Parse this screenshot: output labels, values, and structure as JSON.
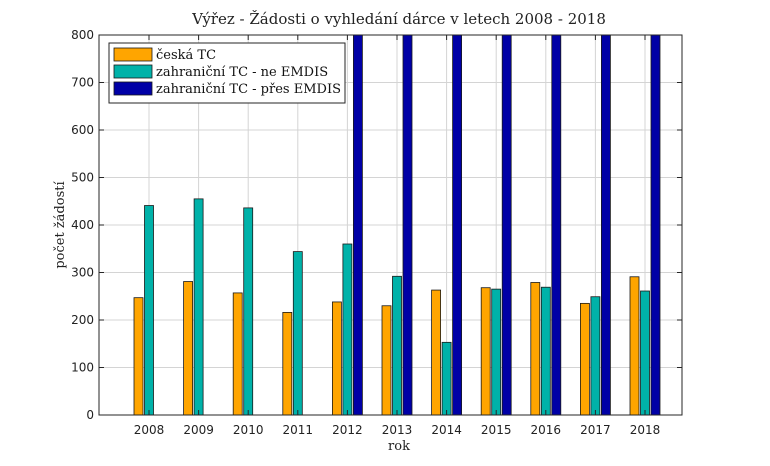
{
  "chart_data": {
    "type": "bar",
    "title": "Výřez - Žádosti o vyhledání dárce v letech 2008 - 2018",
    "xlabel": "rok",
    "ylabel": "počet žádostí",
    "ylim": [
      0,
      800
    ],
    "yticks": [
      0,
      100,
      200,
      300,
      400,
      500,
      600,
      700,
      800
    ],
    "categories": [
      "2008",
      "2009",
      "2010",
      "2011",
      "2012",
      "2013",
      "2014",
      "2015",
      "2016",
      "2017",
      "2018"
    ],
    "grid": true,
    "legend_position": "top-left",
    "series": [
      {
        "name": "česká TC",
        "color": "#FFA500",
        "values": [
          247,
          281,
          257,
          216,
          238,
          230,
          263,
          268,
          279,
          235,
          291
        ]
      },
      {
        "name": "zahraniční TC - ne EMDIS",
        "color": "#00B2A9",
        "values": [
          441,
          455,
          436,
          344,
          360,
          292,
          153,
          265,
          269,
          249,
          261
        ]
      },
      {
        "name": "zahraniční TC - přes EMDIS",
        "color": "#0000A6",
        "values": [
          0,
          0,
          0,
          0,
          800,
          800,
          800,
          800,
          800,
          800,
          800
        ]
      }
    ]
  }
}
